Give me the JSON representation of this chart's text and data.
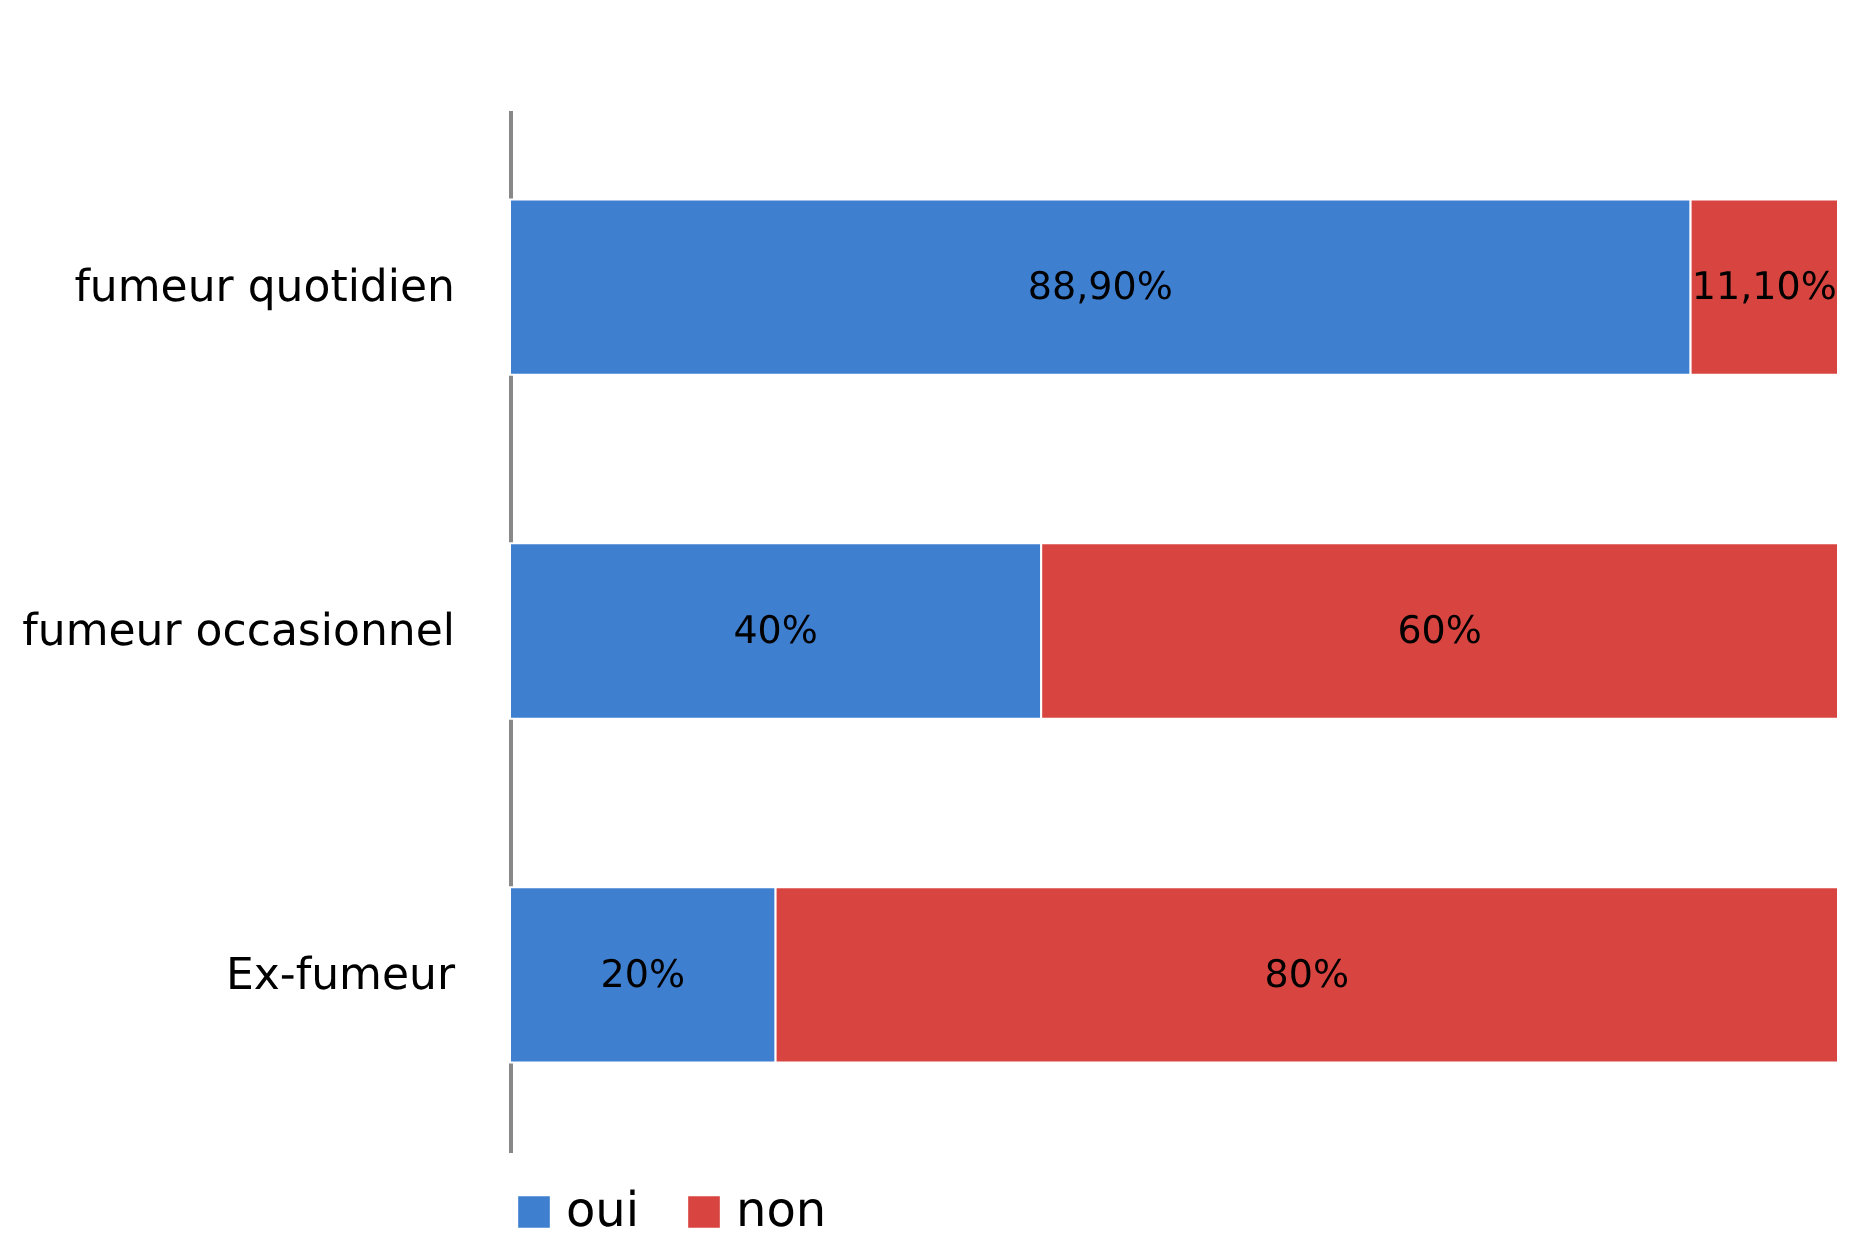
{
  "chart_data": {
    "type": "bar",
    "orientation": "horizontal",
    "stacked": true,
    "categories": [
      "fumeur quotidien",
      "fumeur occasionnel",
      "Ex-fumeur"
    ],
    "series": [
      {
        "name": "oui",
        "color": "#3f7fd0",
        "values": [
          88.9,
          40,
          20
        ],
        "value_labels": [
          "88,90%",
          "40%",
          "20%"
        ]
      },
      {
        "name": "non",
        "color": "#d84540",
        "values": [
          11.1,
          60,
          80
        ],
        "value_labels": [
          "11,10%",
          "60%",
          "80%"
        ]
      }
    ],
    "xlim": [
      0,
      100
    ],
    "tick_labels": "y",
    "legend": "bottom"
  }
}
